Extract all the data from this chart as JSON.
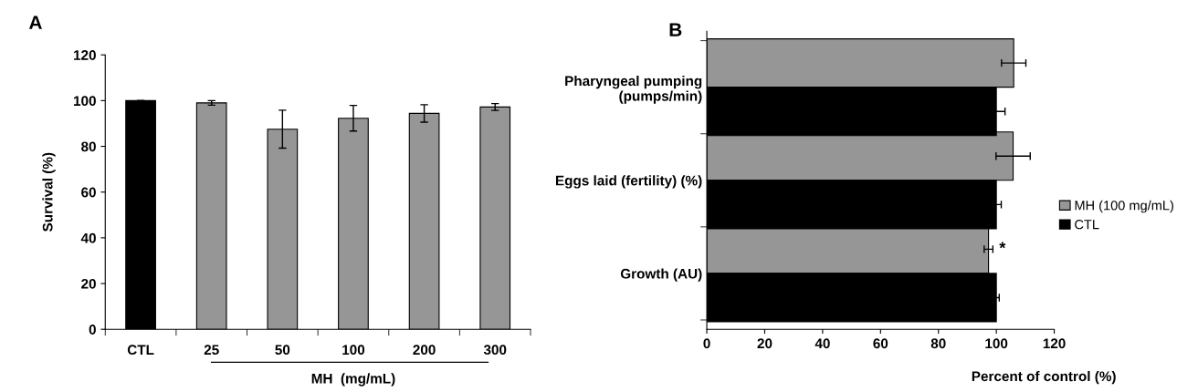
{
  "chart_data": [
    {
      "type": "bar",
      "title": "A",
      "ylabel": "Survival (%)",
      "xlabel": "MH  (mg/mL)",
      "categories": [
        "CTL",
        "25",
        "50",
        "100",
        "200",
        "300"
      ],
      "values": [
        100,
        99,
        87.5,
        92.3,
        94.4,
        97.2
      ],
      "errors": [
        null,
        1,
        8.3,
        5.6,
        3.8,
        1.5
      ],
      "colors": [
        "#000000",
        "#969696",
        "#969696",
        "#969696",
        "#969696",
        "#969696"
      ],
      "ylim": [
        0,
        120
      ],
      "yticks": [
        0,
        20,
        40,
        60,
        80,
        100,
        120
      ],
      "grid": false,
      "legend": false
    },
    {
      "type": "bar",
      "orientation": "horizontal",
      "title": "B",
      "xlabel": "Percent of control (%)",
      "categories": [
        "Pharyngeal pumping\n(pumps/min)",
        "Eggs laid (fertility) (%)",
        "Growth (AU)"
      ],
      "series": [
        {
          "name": "MH (100 mg/mL)",
          "color": "#969696",
          "values": [
            106,
            105.8,
            97.3
          ],
          "errors": [
            4.2,
            5.9,
            1.5
          ]
        },
        {
          "name": "CTL",
          "color": "#000000",
          "values": [
            100,
            100,
            100
          ],
          "errors": [
            3,
            1.7,
            1
          ]
        }
      ],
      "annotations": [
        {
          "text": "*",
          "x": 101,
          "y": "Growth (AU)"
        }
      ],
      "xlim": [
        0,
        120
      ],
      "xticks": [
        0,
        20,
        40,
        60,
        80,
        100,
        120
      ],
      "grid": false,
      "legend": "right"
    }
  ]
}
